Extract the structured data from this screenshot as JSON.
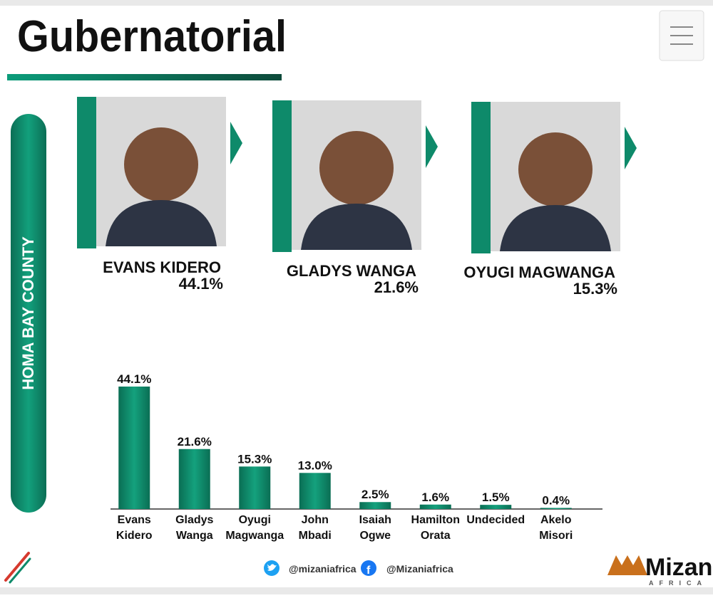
{
  "header": {
    "title": "Gubernatorial"
  },
  "county": "HOMA BAY COUNTY",
  "candidates": [
    {
      "name": "EVANS KIDERO",
      "share": "44.1%"
    },
    {
      "name": "GLADYS WANGA",
      "share": "21.6%"
    },
    {
      "name": "OYUGI MAGWANGA",
      "share": "15.3%"
    }
  ],
  "chart_data": {
    "type": "bar",
    "categories": [
      "Evans Kidero",
      "Gladys Wanga",
      "Oyugi Magwanga",
      "John Mbadi",
      "Isaiah Ogwe",
      "Hamilton Orata",
      "Undecided",
      "Akelo Misori"
    ],
    "values": [
      44.1,
      21.6,
      15.3,
      13.0,
      2.5,
      1.6,
      1.5,
      0.4
    ],
    "value_labels": [
      "44.1%",
      "21.6%",
      "15.3%",
      "13.0%",
      "2.5%",
      "1.6%",
      "1.5%",
      "0.4%"
    ],
    "color": "#0e8a6a"
  },
  "footer": {
    "twitter": "@mizaniafrica",
    "facebook": "@Mizaniafrica"
  },
  "brand": {
    "name": "Mizani",
    "tagline": "AFRICA"
  }
}
